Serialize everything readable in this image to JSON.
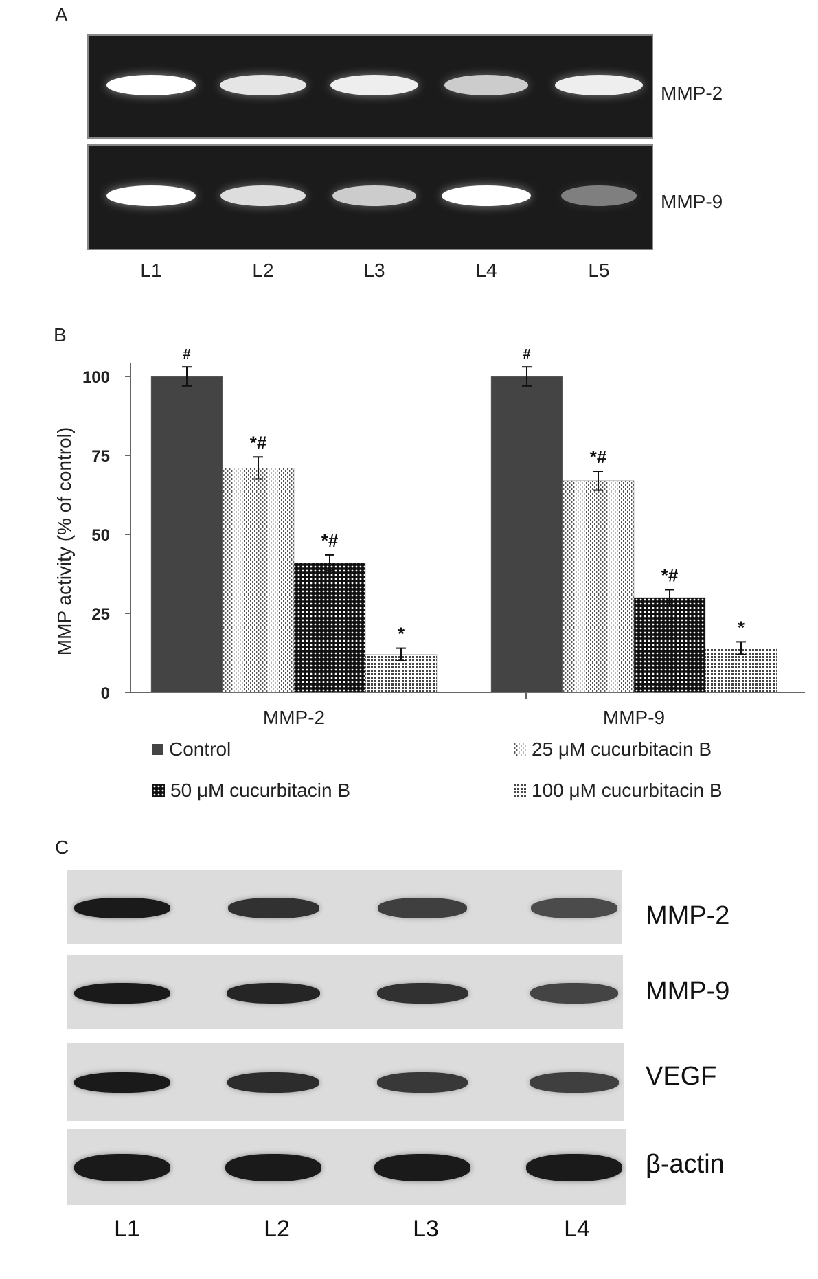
{
  "panel_a": {
    "letter": "A",
    "rows": [
      {
        "label": "MMP-2",
        "bands": [
          1.0,
          0.85,
          0.9,
          0.7,
          0.9
        ]
      },
      {
        "label": "MMP-9",
        "bands": [
          1.0,
          0.8,
          0.7,
          1.0,
          0.25
        ]
      }
    ],
    "lanes": [
      "L1",
      "L2",
      "L3",
      "L4",
      "L5"
    ]
  },
  "panel_b": {
    "letter": "B"
  },
  "chart_data": {
    "type": "bar",
    "title": "",
    "ylabel": "MMP activity (% of control)",
    "xlabel": "",
    "categories": [
      "MMP-2",
      "MMP-9"
    ],
    "ylim": [
      0,
      100
    ],
    "yticks": [
      "0",
      "25",
      "50",
      "75",
      "100"
    ],
    "series": [
      {
        "name": "Control",
        "values": [
          100,
          100
        ],
        "errors": [
          3,
          3
        ],
        "annotations": [
          "#",
          "#"
        ],
        "color": "#444444",
        "pattern": "solid"
      },
      {
        "name": "25 μM cucurbitacin B",
        "values": [
          71,
          67
        ],
        "errors": [
          3.5,
          3
        ],
        "annotations": [
          "*#",
          "*#"
        ],
        "color": "#bbbbbb",
        "pattern": "dots"
      },
      {
        "name": "50 μM cucurbitacin B",
        "values": [
          41,
          30
        ],
        "errors": [
          2.5,
          2.5
        ],
        "annotations": [
          "*#",
          "*#"
        ],
        "color": "#222222",
        "pattern": "dense"
      },
      {
        "name": "100 μM cucurbitacin B",
        "values": [
          12,
          14
        ],
        "errors": [
          2,
          2
        ],
        "annotations": [
          "*",
          "*"
        ],
        "color": "#555555",
        "pattern": "grid"
      }
    ],
    "grid": false,
    "legend_position": "bottom"
  },
  "panel_c": {
    "letter": "C",
    "rows": [
      {
        "label": "MMP-2",
        "bands": [
          1.0,
          0.8,
          0.7,
          0.6
        ]
      },
      {
        "label": "MMP-9",
        "bands": [
          1.0,
          0.9,
          0.8,
          0.65
        ]
      },
      {
        "label": "VEGF",
        "bands": [
          1.0,
          0.85,
          0.75,
          0.7
        ]
      },
      {
        "label": "β-actin",
        "bands": [
          1.0,
          1.0,
          1.0,
          1.0
        ]
      }
    ],
    "lanes": [
      "L1",
      "L2",
      "L3",
      "L4"
    ]
  }
}
